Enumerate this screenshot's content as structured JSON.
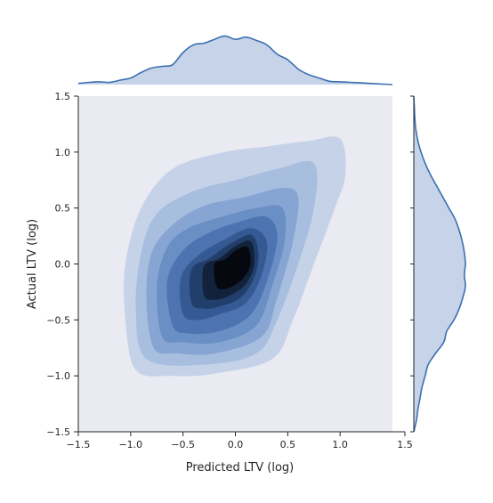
{
  "chart_data": {
    "type": "kde_jointplot",
    "xlabel": "Predicted LTV (log)",
    "ylabel": "Actual LTV (log)",
    "xlim": [
      -1.5,
      1.5
    ],
    "ylim": [
      -1.5,
      1.5
    ],
    "x_ticks": [
      "−1.5",
      "−1.0",
      "−0.5",
      "0.0",
      "0.5",
      "1.0",
      "1.5"
    ],
    "y_ticks": [
      "1.5",
      "1.0",
      "0.5",
      "0.0",
      "−0.5",
      "−1.0",
      "−1.5"
    ],
    "grid": false,
    "colors": {
      "plot_background": "#eaeaf2",
      "contour_levels": [
        "#c5d2e8",
        "#a8bedf",
        "#87a5d2",
        "#6a8fc5",
        "#4d73b0",
        "#355a93",
        "#223e6b",
        "#12223b",
        "#05080f"
      ],
      "marginal_fill": "#c7d3e8",
      "marginal_line": "#3a70b0",
      "axis": "#262626"
    },
    "contours": [
      {
        "level": 1,
        "points": [
          [
            -0.95,
            -0.95
          ],
          [
            -1.05,
            -0.5
          ],
          [
            -1.05,
            0.0
          ],
          [
            -0.9,
            0.5
          ],
          [
            -0.6,
            0.85
          ],
          [
            -0.1,
            1.0
          ],
          [
            0.3,
            1.05
          ],
          [
            0.7,
            1.1
          ],
          [
            1.0,
            1.12
          ],
          [
            1.05,
            0.8
          ],
          [
            0.95,
            0.5
          ],
          [
            0.75,
            0.0
          ],
          [
            0.55,
            -0.5
          ],
          [
            0.35,
            -0.85
          ],
          [
            -0.2,
            -0.98
          ],
          [
            -0.6,
            -1.0
          ]
        ]
      },
      {
        "level": 2,
        "points": [
          [
            -0.85,
            -0.85
          ],
          [
            -0.95,
            -0.4
          ],
          [
            -0.9,
            0.1
          ],
          [
            -0.75,
            0.45
          ],
          [
            -0.4,
            0.65
          ],
          [
            0.0,
            0.75
          ],
          [
            0.4,
            0.85
          ],
          [
            0.75,
            0.9
          ],
          [
            0.75,
            0.5
          ],
          [
            0.6,
            0.0
          ],
          [
            0.4,
            -0.5
          ],
          [
            0.2,
            -0.8
          ],
          [
            -0.3,
            -0.9
          ]
        ]
      },
      {
        "level": 3,
        "points": [
          [
            -0.78,
            -0.75
          ],
          [
            -0.85,
            -0.3
          ],
          [
            -0.8,
            0.1
          ],
          [
            -0.6,
            0.35
          ],
          [
            -0.3,
            0.52
          ],
          [
            0.1,
            0.6
          ],
          [
            0.45,
            0.68
          ],
          [
            0.6,
            0.6
          ],
          [
            0.55,
            0.2
          ],
          [
            0.4,
            -0.3
          ],
          [
            0.25,
            -0.65
          ],
          [
            -0.2,
            -0.8
          ],
          [
            -0.55,
            -0.8
          ]
        ]
      },
      {
        "level": 4,
        "points": [
          [
            -0.7,
            -0.65
          ],
          [
            -0.75,
            -0.2
          ],
          [
            -0.65,
            0.15
          ],
          [
            -0.45,
            0.32
          ],
          [
            -0.1,
            0.43
          ],
          [
            0.2,
            0.5
          ],
          [
            0.45,
            0.5
          ],
          [
            0.47,
            0.2
          ],
          [
            0.35,
            -0.2
          ],
          [
            0.2,
            -0.55
          ],
          [
            -0.15,
            -0.7
          ],
          [
            -0.5,
            -0.7
          ]
        ]
      },
      {
        "level": 5,
        "points": [
          [
            -0.6,
            -0.55
          ],
          [
            -0.65,
            -0.15
          ],
          [
            -0.5,
            0.12
          ],
          [
            -0.25,
            0.28
          ],
          [
            0.05,
            0.38
          ],
          [
            0.3,
            0.42
          ],
          [
            0.4,
            0.25
          ],
          [
            0.32,
            -0.1
          ],
          [
            0.15,
            -0.45
          ],
          [
            -0.15,
            -0.6
          ],
          [
            -0.45,
            -0.62
          ]
        ]
      },
      {
        "level": 6,
        "points": [
          [
            -0.5,
            -0.45
          ],
          [
            -0.52,
            -0.12
          ],
          [
            -0.35,
            0.08
          ],
          [
            -0.1,
            0.22
          ],
          [
            0.15,
            0.32
          ],
          [
            0.3,
            0.2
          ],
          [
            0.25,
            -0.1
          ],
          [
            0.1,
            -0.35
          ],
          [
            -0.15,
            -0.45
          ],
          [
            -0.35,
            -0.5
          ]
        ]
      },
      {
        "level": 7,
        "points": [
          [
            -0.42,
            -0.35
          ],
          [
            -0.42,
            -0.05
          ],
          [
            -0.25,
            0.05
          ],
          [
            -0.05,
            0.18
          ],
          [
            0.15,
            0.26
          ],
          [
            0.22,
            0.1
          ],
          [
            0.18,
            -0.12
          ],
          [
            0.05,
            -0.3
          ],
          [
            -0.15,
            -0.38
          ],
          [
            -0.3,
            -0.4
          ]
        ]
      },
      {
        "level": 8,
        "points": [
          [
            -0.3,
            -0.28
          ],
          [
            -0.3,
            -0.02
          ],
          [
            -0.15,
            0.05
          ],
          [
            0.0,
            0.16
          ],
          [
            0.15,
            0.2
          ],
          [
            0.18,
            0.0
          ],
          [
            0.1,
            -0.18
          ],
          [
            -0.05,
            -0.28
          ],
          [
            -0.2,
            -0.32
          ]
        ]
      },
      {
        "level": 9,
        "points": [
          [
            -0.18,
            -0.2
          ],
          [
            -0.2,
            0.0
          ],
          [
            -0.1,
            0.04
          ],
          [
            0.0,
            0.12
          ],
          [
            0.12,
            0.15
          ],
          [
            0.14,
            -0.02
          ],
          [
            0.05,
            -0.15
          ],
          [
            -0.08,
            -0.22
          ]
        ]
      }
    ],
    "marginal_x": {
      "x": [
        -1.5,
        -1.4,
        -1.3,
        -1.2,
        -1.1,
        -1.0,
        -0.9,
        -0.8,
        -0.7,
        -0.6,
        -0.5,
        -0.4,
        -0.3,
        -0.2,
        -0.1,
        0.0,
        0.1,
        0.2,
        0.3,
        0.4,
        0.5,
        0.6,
        0.7,
        0.8,
        0.9,
        1.0,
        1.1,
        1.2,
        1.3,
        1.4,
        1.5
      ],
      "density": [
        0.02,
        0.04,
        0.05,
        0.04,
        0.08,
        0.12,
        0.22,
        0.3,
        0.33,
        0.36,
        0.58,
        0.72,
        0.75,
        0.82,
        0.88,
        0.82,
        0.86,
        0.8,
        0.72,
        0.55,
        0.45,
        0.28,
        0.18,
        0.12,
        0.06,
        0.05,
        0.04,
        0.03,
        0.02,
        0.01,
        0.0
      ]
    },
    "marginal_y": {
      "y": [
        -1.5,
        -1.4,
        -1.3,
        -1.2,
        -1.1,
        -1.0,
        -0.9,
        -0.8,
        -0.7,
        -0.6,
        -0.5,
        -0.4,
        -0.3,
        -0.2,
        -0.1,
        0.0,
        0.1,
        0.2,
        0.3,
        0.4,
        0.5,
        0.6,
        0.7,
        0.8,
        0.9,
        1.0,
        1.1,
        1.2,
        1.3,
        1.4,
        1.5
      ],
      "density": [
        0.0,
        0.05,
        0.08,
        0.12,
        0.16,
        0.22,
        0.28,
        0.42,
        0.58,
        0.64,
        0.78,
        0.88,
        0.95,
        1.0,
        0.98,
        1.0,
        0.98,
        0.94,
        0.88,
        0.8,
        0.68,
        0.56,
        0.44,
        0.32,
        0.22,
        0.14,
        0.08,
        0.04,
        0.02,
        0.01,
        0.0
      ]
    }
  }
}
